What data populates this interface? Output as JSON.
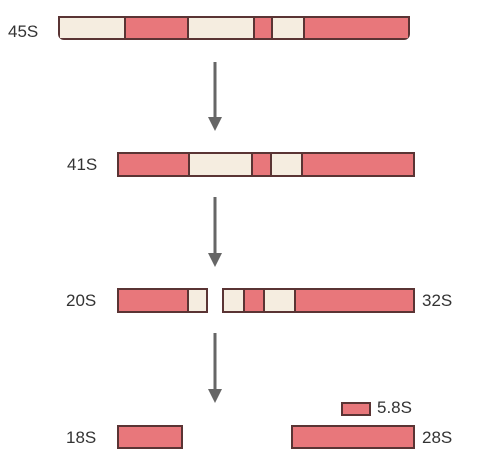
{
  "labels": {
    "s45": "45S",
    "s41": "41S",
    "s20": "20S",
    "s32": "32S",
    "s18": "18S",
    "s58": "5.8S",
    "s28": "28S"
  },
  "colors": {
    "rrna": "#e8777b",
    "spacer": "#f5ede0",
    "outline": "#5a3434",
    "arrow": "#666666"
  }
}
